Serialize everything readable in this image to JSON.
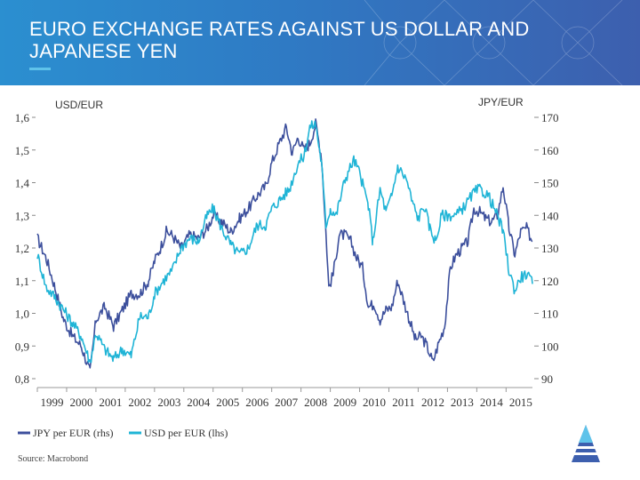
{
  "title": "EURO EXCHANGE RATES AGAINST US DOLLAR AND JAPANESE YEN",
  "label_left": "USD/EUR",
  "label_right": "JPY/EUR",
  "source": "Source: Macrobond",
  "colors": {
    "jpy": "#3c4f9c",
    "usd": "#1fb4d6",
    "header_start": "#2b8fd0",
    "header_end": "#3d5fae"
  },
  "chart_data": {
    "type": "line",
    "title": "EURO EXCHANGE RATES AGAINST US DOLLAR AND JAPANESE YEN",
    "x_ticks": [
      "1999",
      "2000",
      "2001",
      "2002",
      "2003",
      "2004",
      "2005",
      "2006",
      "2007",
      "2008",
      "2009",
      "2010",
      "2011",
      "2012",
      "2013",
      "2014",
      "2015"
    ],
    "x_range": [
      1999,
      2015.9
    ],
    "y_left": {
      "label": "USD/EUR",
      "range": [
        0.8,
        1.6
      ],
      "ticks": [
        "1,6",
        "1,5",
        "1,4",
        "1,3",
        "1,2",
        "1,1",
        "1,0",
        "0,9",
        "0,8"
      ],
      "tick_values": [
        1.6,
        1.5,
        1.4,
        1.3,
        1.2,
        1.1,
        1.0,
        0.9,
        0.8
      ]
    },
    "y_right": {
      "label": "JPY/EUR",
      "range": [
        90,
        170
      ],
      "ticks": [
        "170",
        "160",
        "150",
        "140",
        "130",
        "120",
        "110",
        "100",
        "90"
      ],
      "tick_values": [
        170,
        160,
        150,
        140,
        130,
        120,
        110,
        100,
        90
      ]
    },
    "series": [
      {
        "name": "JPY per EUR (rhs)",
        "axis": "right",
        "color": "#3c4f9c",
        "points": [
          [
            1999.0,
            133
          ],
          [
            1999.3,
            127
          ],
          [
            1999.6,
            118
          ],
          [
            1999.9,
            108
          ],
          [
            2000.2,
            103
          ],
          [
            2000.5,
            100
          ],
          [
            2000.8,
            92
          ],
          [
            2001.0,
            108
          ],
          [
            2001.3,
            112
          ],
          [
            2001.6,
            106
          ],
          [
            2001.9,
            111
          ],
          [
            2002.2,
            116
          ],
          [
            2002.5,
            116
          ],
          [
            2002.8,
            120
          ],
          [
            2003.0,
            126
          ],
          [
            2003.2,
            130
          ],
          [
            2003.4,
            135
          ],
          [
            2003.6,
            134
          ],
          [
            2003.9,
            130
          ],
          [
            2004.2,
            134
          ],
          [
            2004.5,
            133
          ],
          [
            2004.8,
            136
          ],
          [
            2005.0,
            140
          ],
          [
            2005.3,
            138
          ],
          [
            2005.6,
            135
          ],
          [
            2005.9,
            139
          ],
          [
            2006.2,
            142
          ],
          [
            2006.5,
            146
          ],
          [
            2006.8,
            149
          ],
          [
            2007.0,
            156
          ],
          [
            2007.3,
            163
          ],
          [
            2007.5,
            167
          ],
          [
            2007.7,
            159
          ],
          [
            2007.9,
            164
          ],
          [
            2008.1,
            160
          ],
          [
            2008.3,
            162
          ],
          [
            2008.5,
            168
          ],
          [
            2008.7,
            158
          ],
          [
            2008.85,
            135
          ],
          [
            2008.95,
            118
          ],
          [
            2009.1,
            122
          ],
          [
            2009.3,
            134
          ],
          [
            2009.5,
            134
          ],
          [
            2009.7,
            132
          ],
          [
            2009.9,
            127
          ],
          [
            2010.1,
            124
          ],
          [
            2010.3,
            112
          ],
          [
            2010.5,
            113
          ],
          [
            2010.7,
            108
          ],
          [
            2010.9,
            111
          ],
          [
            2011.1,
            112
          ],
          [
            2011.3,
            120
          ],
          [
            2011.5,
            114
          ],
          [
            2011.7,
            108
          ],
          [
            2011.9,
            102
          ],
          [
            2012.1,
            103
          ],
          [
            2012.3,
            100
          ],
          [
            2012.5,
            95
          ],
          [
            2012.7,
            101
          ],
          [
            2012.9,
            106
          ],
          [
            2013.1,
            124
          ],
          [
            2013.3,
            128
          ],
          [
            2013.5,
            130
          ],
          [
            2013.7,
            132
          ],
          [
            2013.9,
            142
          ],
          [
            2014.1,
            141
          ],
          [
            2014.3,
            139
          ],
          [
            2014.5,
            138
          ],
          [
            2014.7,
            140
          ],
          [
            2014.9,
            149
          ],
          [
            2015.1,
            136
          ],
          [
            2015.3,
            128
          ],
          [
            2015.5,
            135
          ],
          [
            2015.7,
            136
          ],
          [
            2015.9,
            132
          ]
        ]
      },
      {
        "name": "USD per EUR (lhs)",
        "axis": "left",
        "color": "#1fb4d6",
        "points": [
          [
            1999.0,
            1.18
          ],
          [
            1999.3,
            1.08
          ],
          [
            1999.6,
            1.05
          ],
          [
            1999.9,
            1.01
          ],
          [
            2000.2,
            0.97
          ],
          [
            2000.5,
            0.93
          ],
          [
            2000.8,
            0.85
          ],
          [
            2001.0,
            0.94
          ],
          [
            2001.3,
            0.89
          ],
          [
            2001.6,
            0.86
          ],
          [
            2001.9,
            0.89
          ],
          [
            2002.2,
            0.87
          ],
          [
            2002.5,
            0.99
          ],
          [
            2002.8,
            0.99
          ],
          [
            2003.0,
            1.06
          ],
          [
            2003.3,
            1.1
          ],
          [
            2003.6,
            1.13
          ],
          [
            2003.9,
            1.2
          ],
          [
            2004.2,
            1.23
          ],
          [
            2004.5,
            1.22
          ],
          [
            2004.8,
            1.3
          ],
          [
            2005.0,
            1.32
          ],
          [
            2005.3,
            1.26
          ],
          [
            2005.6,
            1.21
          ],
          [
            2005.9,
            1.18
          ],
          [
            2006.2,
            1.2
          ],
          [
            2006.5,
            1.27
          ],
          [
            2006.8,
            1.27
          ],
          [
            2007.0,
            1.32
          ],
          [
            2007.3,
            1.35
          ],
          [
            2007.6,
            1.38
          ],
          [
            2007.9,
            1.46
          ],
          [
            2008.1,
            1.48
          ],
          [
            2008.3,
            1.57
          ],
          [
            2008.5,
            1.58
          ],
          [
            2008.7,
            1.46
          ],
          [
            2008.85,
            1.27
          ],
          [
            2009.0,
            1.32
          ],
          [
            2009.2,
            1.3
          ],
          [
            2009.5,
            1.41
          ],
          [
            2009.8,
            1.47
          ],
          [
            2010.0,
            1.43
          ],
          [
            2010.3,
            1.33
          ],
          [
            2010.45,
            1.22
          ],
          [
            2010.7,
            1.38
          ],
          [
            2010.9,
            1.31
          ],
          [
            2011.1,
            1.36
          ],
          [
            2011.3,
            1.45
          ],
          [
            2011.6,
            1.41
          ],
          [
            2011.8,
            1.34
          ],
          [
            2012.0,
            1.29
          ],
          [
            2012.2,
            1.33
          ],
          [
            2012.4,
            1.26
          ],
          [
            2012.6,
            1.22
          ],
          [
            2012.8,
            1.3
          ],
          [
            2013.0,
            1.3
          ],
          [
            2013.3,
            1.3
          ],
          [
            2013.6,
            1.33
          ],
          [
            2013.9,
            1.37
          ],
          [
            2014.1,
            1.38
          ],
          [
            2014.4,
            1.36
          ],
          [
            2014.7,
            1.3
          ],
          [
            2014.9,
            1.25
          ],
          [
            2015.1,
            1.13
          ],
          [
            2015.3,
            1.07
          ],
          [
            2015.5,
            1.11
          ],
          [
            2015.7,
            1.12
          ],
          [
            2015.9,
            1.09
          ]
        ]
      }
    ],
    "legend": [
      "JPY per EUR (rhs)",
      "USD per EUR (lhs)"
    ],
    "legend_position": "bottom-left",
    "source": "Source: Macrobond"
  }
}
